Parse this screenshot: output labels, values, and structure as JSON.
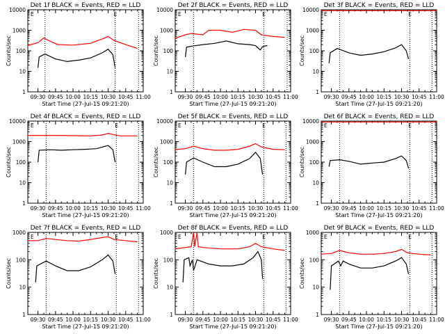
{
  "common": {
    "ylabel": "Counts/sec",
    "xlabel": "Start Time (27-Jul-15 09:21:20)",
    "x_ticks": [
      "09:30",
      "09:45",
      "10:00",
      "10:15",
      "10:30",
      "10:45",
      "11:00"
    ],
    "y_ticks": [
      "1",
      "10",
      "100",
      "1000",
      "10000"
    ],
    "corner_mark": "E",
    "colors": {
      "events": "#000000",
      "lld": "#ff0000"
    }
  },
  "chart_data": [
    {
      "type": "line",
      "title": "Det 1f BLACK = Events, RED = LLD",
      "xlim": [
        "09:21:20",
        "11:00"
      ],
      "ylim": [
        1,
        10000
      ],
      "yscale": "log",
      "vlines": [
        "09:36",
        "10:36",
        "10:56"
      ],
      "series": [
        {
          "name": "Events",
          "color": "#000000",
          "x": [
            "09:30",
            "09:31",
            "09:36",
            "09:45",
            "09:55",
            "10:05",
            "10:15",
            "10:25",
            "10:30",
            "10:34",
            "10:36"
          ],
          "values": [
            15,
            50,
            70,
            40,
            30,
            35,
            45,
            80,
            120,
            65,
            15
          ]
        },
        {
          "name": "LLD",
          "color": "#ff0000",
          "x": [
            "09:21",
            "09:30",
            "09:35",
            "09:40",
            "09:47",
            "10:00",
            "10:15",
            "10:25",
            "10:30",
            "10:35",
            "10:45",
            "10:55"
          ],
          "values": [
            180,
            250,
            420,
            300,
            200,
            190,
            230,
            380,
            500,
            320,
            200,
            130
          ]
        }
      ]
    },
    {
      "type": "line",
      "title": "Det 2f BLACK = Events, RED = LLD",
      "xlim": [
        "09:21:20",
        "11:00"
      ],
      "ylim": [
        1,
        10000
      ],
      "yscale": "log",
      "vlines": [
        "09:37",
        "10:37",
        "10:57"
      ],
      "series": [
        {
          "name": "Events",
          "color": "#000000",
          "x": [
            "09:30",
            "09:31",
            "09:36",
            "09:45",
            "09:55",
            "10:05",
            "10:15",
            "10:25",
            "10:30",
            "10:34",
            "10:36",
            "10:40"
          ],
          "values": [
            50,
            150,
            170,
            200,
            230,
            300,
            220,
            200,
            180,
            110,
            160,
            180
          ]
        },
        {
          "name": "LLD",
          "color": "#ff0000",
          "x": [
            "09:21",
            "09:30",
            "09:35",
            "09:45",
            "09:50",
            "10:00",
            "10:10",
            "10:20",
            "10:30",
            "10:35",
            "10:45",
            "10:55"
          ],
          "values": [
            400,
            600,
            700,
            600,
            1000,
            1000,
            800,
            1100,
            1000,
            600,
            500,
            450
          ]
        }
      ]
    },
    {
      "type": "line",
      "title": "Det 3f BLACK = Events, RED = LLD",
      "xlim": [
        "09:21:20",
        "11:00"
      ],
      "ylim": [
        1,
        10000
      ],
      "yscale": "log",
      "vlines": [
        "09:37",
        "10:37",
        "10:56"
      ],
      "series": [
        {
          "name": "Events",
          "color": "#000000",
          "x": [
            "09:28",
            "09:29",
            "09:35",
            "09:45",
            "09:55",
            "10:05",
            "10:15",
            "10:25",
            "10:30",
            "10:34",
            "10:36"
          ],
          "values": [
            25,
            80,
            130,
            80,
            60,
            70,
            90,
            140,
            200,
            100,
            40
          ]
        },
        {
          "name": "LLD",
          "color": "#ff0000",
          "x": [
            "09:21",
            "11:00"
          ],
          "values": [
            9000,
            9000
          ]
        }
      ]
    },
    {
      "type": "line",
      "title": "Det 4f BLACK = Events, RED = LLD",
      "xlim": [
        "09:21:20",
        "11:00"
      ],
      "ylim": [
        1,
        10000
      ],
      "yscale": "log",
      "vlines": [
        "09:37",
        "10:37",
        "10:56"
      ],
      "series": [
        {
          "name": "Events",
          "color": "#000000",
          "x": [
            "09:30",
            "09:31",
            "09:40",
            "09:50",
            "10:00",
            "10:10",
            "10:20",
            "10:30",
            "10:34",
            "10:36"
          ],
          "values": [
            100,
            380,
            400,
            380,
            400,
            420,
            450,
            650,
            400,
            100
          ]
        },
        {
          "name": "LLD",
          "color": "#ff0000",
          "x": [
            "09:21",
            "09:45",
            "10:15",
            "10:25",
            "10:30",
            "10:40",
            "10:55"
          ],
          "values": [
            2000,
            2000,
            1900,
            2100,
            2500,
            1900,
            1900
          ]
        }
      ]
    },
    {
      "type": "line",
      "title": "Det 5f BLACK = Events, RED = LLD",
      "xlim": [
        "09:21:20",
        "11:00"
      ],
      "ylim": [
        1,
        10000
      ],
      "yscale": "log",
      "vlines": [
        "09:37",
        "10:37",
        "10:56"
      ],
      "series": [
        {
          "name": "Events",
          "color": "#000000",
          "x": [
            "09:30",
            "09:31",
            "09:37",
            "09:45",
            "09:55",
            "10:05",
            "10:15",
            "10:25",
            "10:30",
            "10:34",
            "10:36"
          ],
          "values": [
            25,
            100,
            160,
            100,
            60,
            60,
            80,
            150,
            300,
            150,
            25
          ]
        },
        {
          "name": "LLD",
          "color": "#ff0000",
          "x": [
            "09:21",
            "09:30",
            "09:37",
            "09:45",
            "09:55",
            "10:05",
            "10:15",
            "10:25",
            "10:30",
            "10:35",
            "10:45",
            "10:55"
          ],
          "values": [
            400,
            450,
            600,
            450,
            380,
            380,
            420,
            600,
            800,
            550,
            420,
            400
          ]
        }
      ]
    },
    {
      "type": "line",
      "title": "Det 6f BLACK = Events, RED = LLD",
      "xlim": [
        "09:21:20",
        "11:00"
      ],
      "ylim": [
        1,
        10000
      ],
      "yscale": "log",
      "vlines": [
        "09:37",
        "10:37",
        "10:56"
      ],
      "series": [
        {
          "name": "Events",
          "color": "#000000",
          "x": [
            "09:28",
            "09:29",
            "09:37",
            "09:45",
            "09:55",
            "10:05",
            "10:15",
            "10:25",
            "10:30",
            "10:34",
            "10:36"
          ],
          "values": [
            60,
            120,
            130,
            110,
            80,
            90,
            100,
            150,
            200,
            120,
            50
          ]
        },
        {
          "name": "LLD",
          "color": "#ff0000",
          "x": [
            "09:21",
            "11:00"
          ],
          "values": [
            9000,
            9000
          ]
        }
      ]
    },
    {
      "type": "line",
      "title": "Det 7f BLACK = Events, RED = LLD",
      "xlim": [
        "09:21:20",
        "11:00"
      ],
      "ylim": [
        1,
        1000
      ],
      "yscale": "log",
      "vlines": [
        "09:37",
        "10:37",
        "10:56"
      ],
      "series": [
        {
          "name": "Events",
          "color": "#000000",
          "x": [
            "09:28",
            "09:29",
            "09:37",
            "09:45",
            "09:55",
            "10:05",
            "10:15",
            "10:25",
            "10:30",
            "10:34",
            "10:36"
          ],
          "values": [
            15,
            60,
            90,
            60,
            40,
            40,
            55,
            100,
            150,
            90,
            30
          ]
        },
        {
          "name": "LLD",
          "color": "#ff0000",
          "x": [
            "09:21",
            "09:30",
            "09:37",
            "09:45",
            "09:55",
            "10:05",
            "10:15",
            "10:25",
            "10:30",
            "10:35",
            "10:45",
            "10:55"
          ],
          "values": [
            500,
            500,
            600,
            550,
            500,
            480,
            550,
            650,
            700,
            550,
            500,
            450
          ]
        }
      ]
    },
    {
      "type": "line",
      "title": "Det 8f BLACK = Events, RED = LLD",
      "xlim": [
        "09:21:20",
        "11:00"
      ],
      "ylim": [
        1,
        1000
      ],
      "yscale": "log",
      "vlines": [
        "09:37",
        "10:37",
        "10:56"
      ],
      "series": [
        {
          "name": "Events",
          "color": "#000000",
          "x": [
            "09:28",
            "09:29",
            "09:33",
            "09:34",
            "09:36",
            "09:37",
            "09:40",
            "09:50",
            "10:00",
            "10:10",
            "10:20",
            "10:28",
            "10:32",
            "10:35",
            "10:36"
          ],
          "values": [
            15,
            100,
            120,
            60,
            100,
            40,
            100,
            70,
            60,
            60,
            70,
            120,
            200,
            100,
            20
          ]
        },
        {
          "name": "LLD",
          "color": "#ff0000",
          "x": [
            "09:21",
            "09:35",
            "09:37",
            "09:38",
            "09:40",
            "09:41",
            "09:45",
            "10:00",
            "10:15",
            "10:25",
            "10:30",
            "10:35",
            "10:45",
            "10:55"
          ],
          "values": [
            250,
            300,
            1000,
            300,
            1000,
            300,
            280,
            250,
            250,
            300,
            400,
            300,
            250,
            220
          ]
        }
      ]
    },
    {
      "type": "line",
      "title": "Det 9f BLACK = Events, RED = LLD",
      "xlim": [
        "09:21:20",
        "11:00"
      ],
      "ylim": [
        1,
        1000
      ],
      "yscale": "log",
      "vlines": [
        "09:37",
        "10:37",
        "10:56"
      ],
      "series": [
        {
          "name": "Events",
          "color": "#000000",
          "x": [
            "09:29",
            "09:30",
            "09:36",
            "09:38",
            "09:40",
            "09:45",
            "09:55",
            "10:05",
            "10:15",
            "10:25",
            "10:30",
            "10:34",
            "10:36"
          ],
          "values": [
            8,
            60,
            90,
            60,
            90,
            70,
            50,
            50,
            60,
            90,
            120,
            70,
            30
          ]
        },
        {
          "name": "LLD",
          "color": "#ff0000",
          "x": [
            "09:21",
            "09:30",
            "09:37",
            "09:45",
            "09:55",
            "10:05",
            "10:15",
            "10:25",
            "10:30",
            "10:35",
            "10:45",
            "10:55"
          ],
          "values": [
            160,
            170,
            220,
            180,
            160,
            160,
            170,
            200,
            240,
            180,
            160,
            150
          ]
        }
      ]
    }
  ]
}
